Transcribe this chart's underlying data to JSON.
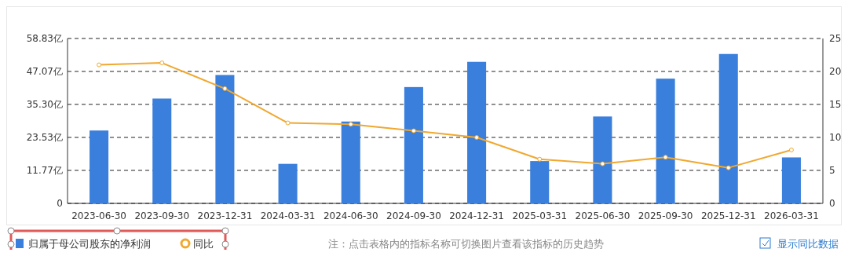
{
  "chart_data": {
    "type": "bar",
    "categories": [
      "2023-06-30",
      "2023-09-30",
      "2023-12-31",
      "2024-03-31",
      "2024-06-30",
      "2024-09-30",
      "2024-12-31",
      "2025-03-31",
      "2025-06-30",
      "2025-09-30",
      "2025-12-31",
      "2026-03-31"
    ],
    "series": [
      {
        "name": "归属于母公司股东的净利润",
        "color": "#3a7fdc",
        "values": [
          26.0,
          37.4,
          45.8,
          14.1,
          29.2,
          41.5,
          50.5,
          15.1,
          31.0,
          44.5,
          53.3,
          16.4
        ]
      },
      {
        "name": "同比",
        "type": "line",
        "axis": "y2",
        "color": "#f0a830",
        "marker": "circle",
        "values": [
          21.0,
          21.3,
          17.4,
          12.2,
          12.0,
          11.0,
          10.0,
          6.7,
          6.0,
          7.0,
          5.4,
          8.1
        ]
      }
    ],
    "ylim": [
      0,
      58.83
    ],
    "yticks": [
      0,
      {
        "value": 11.77,
        "label": "11.77亿"
      },
      {
        "value": 23.53,
        "label": "23.53亿"
      },
      {
        "value": 35.3,
        "label": "35.30亿"
      },
      {
        "value": 47.07,
        "label": "47.07亿"
      },
      {
        "value": 58.83,
        "label": "58.83亿"
      }
    ],
    "y2lim": [
      0,
      25
    ],
    "y2ticks": [
      0,
      5,
      10,
      15,
      20,
      25
    ],
    "grid": "y",
    "legend": "bottom left",
    "annotations": [
      "注：点击表格内的指标名称可切换图片查看该指标的历史趋势",
      "显示同比数据"
    ]
  }
}
